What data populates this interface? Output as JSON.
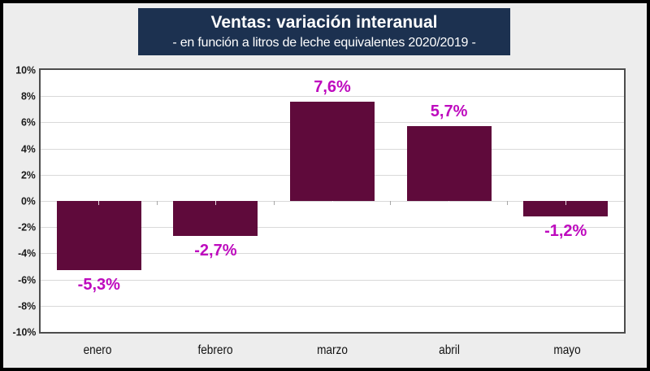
{
  "title": {
    "line1": "Ventas: variación interanual",
    "line2": "- en función a litros de leche equivalentes 2020/2019 -"
  },
  "chart_data": {
    "type": "bar",
    "title": "Ventas: variación interanual",
    "subtitle": "- en función a litros de leche equivalentes 2020/2019 -",
    "categories": [
      "enero",
      "febrero",
      "marzo",
      "abril",
      "mayo"
    ],
    "values": [
      -5.3,
      -2.7,
      7.6,
      5.7,
      -1.2
    ],
    "data_labels": [
      "-5,3%",
      "-2,7%",
      "7,6%",
      "5,7%",
      "-1,2%"
    ],
    "ylim": [
      -10,
      10
    ],
    "ytick_step": 2,
    "ytick_labels": [
      "10%",
      "8%",
      "6%",
      "4%",
      "2%",
      "0%",
      "-2%",
      "-4%",
      "-6%",
      "-8%",
      "-10%"
    ],
    "grid": true,
    "legend": false,
    "xlabel": "",
    "ylabel": ""
  },
  "colors": {
    "page_background": "#ededed",
    "outer_border": "#000000",
    "title_background": "#1c3150",
    "title_text": "#ffffff",
    "plot_background": "#ffffff",
    "plot_border": "#4d4d4d",
    "gridline": "#d9d9d9",
    "bar": "#5f0a3b",
    "data_label": "#be0abe",
    "axis_text": "#1a1a1a"
  }
}
